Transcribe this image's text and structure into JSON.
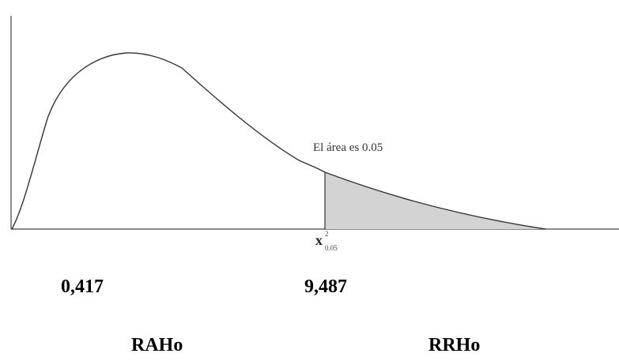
{
  "diagram": {
    "area_note": "El área es 0.05",
    "critical_label": {
      "symbol": "x",
      "superscript": "2",
      "subscript": "0.05"
    },
    "values": {
      "left": "0,417",
      "right": "9,487"
    },
    "regions": {
      "accept": "RAHo",
      "reject": "RRHo"
    },
    "colors": {
      "curve": "#333333",
      "shade": "#d3d3d3",
      "axis": "#444444"
    }
  }
}
